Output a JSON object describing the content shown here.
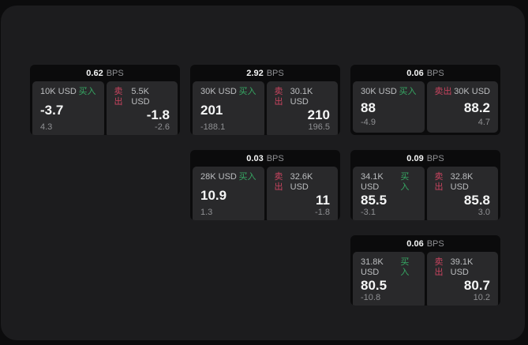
{
  "colors": {
    "outer_bg": "#0c0c0d",
    "window_bg": "#1c1c1e",
    "card_bg": "#0b0b0c",
    "panel_bg": "#29292b",
    "buy_green": "#36a863",
    "sell_red": "#c8445f",
    "text_primary": "#f5f6f6",
    "text_secondary": "#bcbec0",
    "text_muted": "#8f9093"
  },
  "labels": {
    "bps_unit": "BPS",
    "buy": "买入",
    "sell": "卖出"
  },
  "cards": [
    {
      "row": 1,
      "col": 1,
      "bps": "0.62",
      "buy": {
        "amount": "10K USD",
        "value": "-3.7",
        "delta": "4.3"
      },
      "sell": {
        "amount": "5.5K USD",
        "value": "-1.8",
        "delta": "-2.6"
      }
    },
    {
      "row": 1,
      "col": 2,
      "bps": "2.92",
      "buy": {
        "amount": "30K USD",
        "value": "201",
        "delta": "-188.1"
      },
      "sell": {
        "amount": "30.1K USD",
        "value": "210",
        "delta": "196.5"
      }
    },
    {
      "row": 1,
      "col": 3,
      "bps": "0.06",
      "buy": {
        "amount": "30K USD",
        "value": "88",
        "delta": "-4.9"
      },
      "sell": {
        "amount": "30K USD",
        "value": "88.2",
        "delta": "4.7"
      }
    },
    {
      "row": 2,
      "col": 2,
      "bps": "0.03",
      "buy": {
        "amount": "28K USD",
        "value": "10.9",
        "delta": "1.3"
      },
      "sell": {
        "amount": "32.6K USD",
        "value": "11",
        "delta": "-1.8"
      }
    },
    {
      "row": 2,
      "col": 3,
      "bps": "0.09",
      "buy": {
        "amount": "34.1K USD",
        "value": "85.5",
        "delta": "-3.1"
      },
      "sell": {
        "amount": "32.8K USD",
        "value": "85.8",
        "delta": "3.0"
      }
    },
    {
      "row": 3,
      "col": 3,
      "bps": "0.06",
      "buy": {
        "amount": "31.8K USD",
        "value": "80.5",
        "delta": "-10.8"
      },
      "sell": {
        "amount": "39.1K USD",
        "value": "80.7",
        "delta": "10.2"
      }
    }
  ]
}
